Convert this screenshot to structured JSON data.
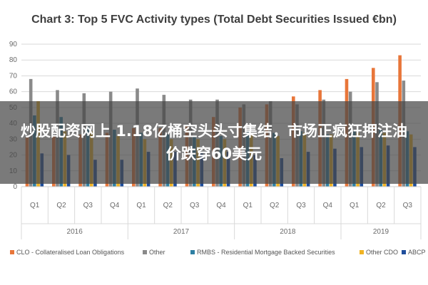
{
  "chart_data": {
    "type": "bar",
    "title": "Chart 3: Top 5 FVC Activity types (Total Debt Securities Issued €bn)",
    "ylim": [
      0,
      90
    ],
    "yticks": [
      0,
      10,
      20,
      30,
      40,
      50,
      60,
      70,
      80,
      90
    ],
    "categories": [
      "Q1",
      "Q2",
      "Q3",
      "Q4",
      "Q1",
      "Q2",
      "Q3",
      "Q4",
      "Q1",
      "Q2",
      "Q3",
      "Q4",
      "Q1",
      "Q2",
      "Q3"
    ],
    "year_groups": [
      {
        "label": "2016",
        "count": 4
      },
      {
        "label": "2017",
        "count": 4
      },
      {
        "label": "2018",
        "count": 4
      },
      {
        "label": "2019",
        "count": 3
      }
    ],
    "grid": true,
    "legend_position": "bottom",
    "series": [
      {
        "name": "CLO - Collateralised Loan Obligations",
        "color": "#e8763a",
        "values": [
          31,
          32,
          33,
          34,
          37,
          37,
          39,
          44,
          50,
          52,
          57,
          61,
          68,
          75,
          83
        ]
      },
      {
        "name": "Other",
        "color": "#8a8a8a",
        "values": [
          68,
          61,
          59,
          60,
          62,
          58,
          55,
          55,
          52,
          54,
          52,
          55,
          60,
          66,
          67
        ]
      },
      {
        "name": "RMBS - Residential Mortgage Backed Securities",
        "color": "#2e7fa3",
        "values": [
          45,
          44,
          38,
          36,
          34,
          33,
          32,
          32,
          35,
          34,
          35,
          33,
          35,
          36,
          35
        ]
      },
      {
        "name": "Other CDO",
        "color": "#f0b323",
        "values": [
          54,
          35,
          35,
          32,
          30,
          30,
          30,
          30,
          33,
          32,
          34,
          33,
          34,
          34,
          33
        ]
      },
      {
        "name": "ABCP",
        "color": "#1f4e9c",
        "values": [
          21,
          20,
          17,
          17,
          22,
          22,
          21,
          22,
          20,
          18,
          22,
          24,
          25,
          26,
          25
        ]
      }
    ]
  },
  "overlay": {
    "text": "炒股配资网上 1.18亿桶空头头寸集结，市场正疯狂押注油价跌穿60美元"
  }
}
